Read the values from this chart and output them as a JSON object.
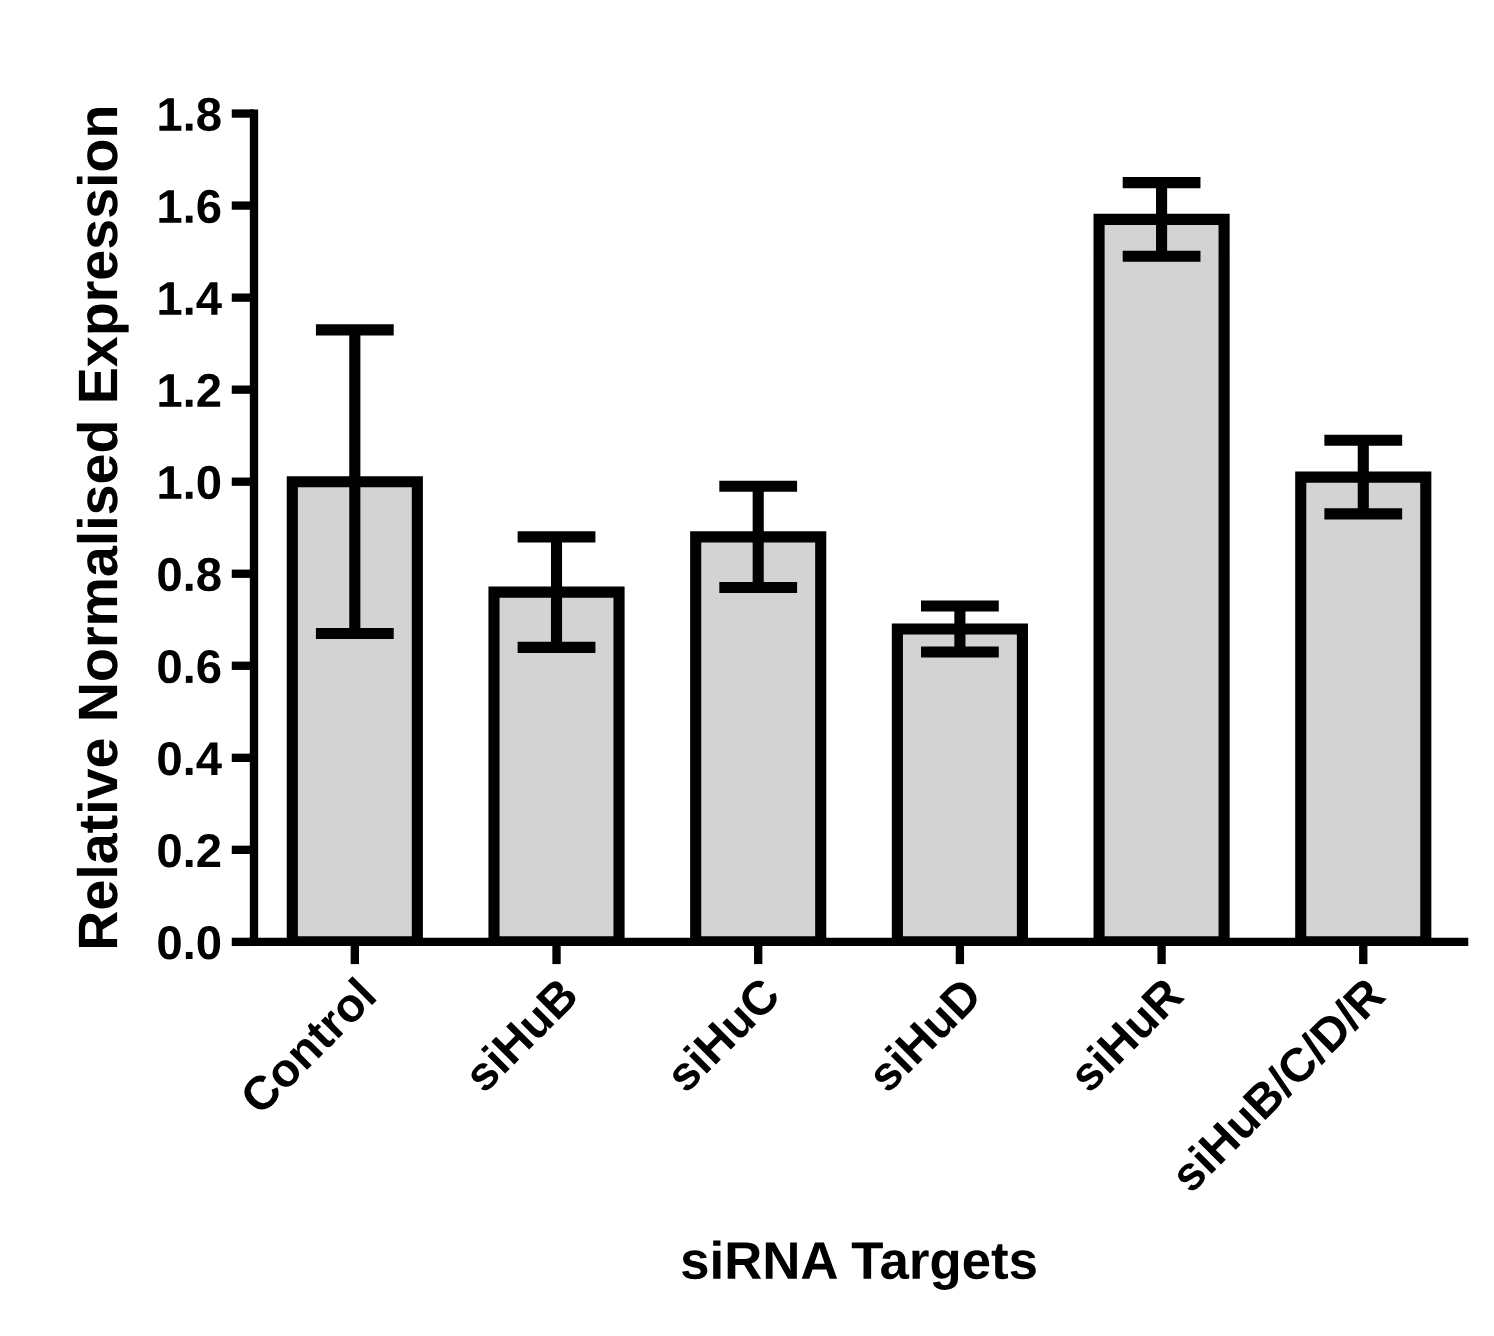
{
  "chart_data": {
    "type": "bar",
    "xlabel": "siRNA Targets",
    "ylabel": "Relative Normalised Expression",
    "categories": [
      "Control",
      "siHuB",
      "siHuC",
      "siHuD",
      "siHuR",
      "siHuB/C/D/R"
    ],
    "values": [
      1.0,
      0.76,
      0.88,
      0.68,
      1.57,
      1.01
    ],
    "errors": [
      0.33,
      0.12,
      0.11,
      0.05,
      0.08,
      0.08
    ],
    "color": "#d3d3d3",
    "ylim": [
      0,
      1.8
    ],
    "yticks": [
      "0.0",
      0.2,
      0.4,
      0.6,
      0.8,
      "1.0",
      1.2,
      1.4,
      1.6,
      1.8
    ],
    "grid": false
  }
}
